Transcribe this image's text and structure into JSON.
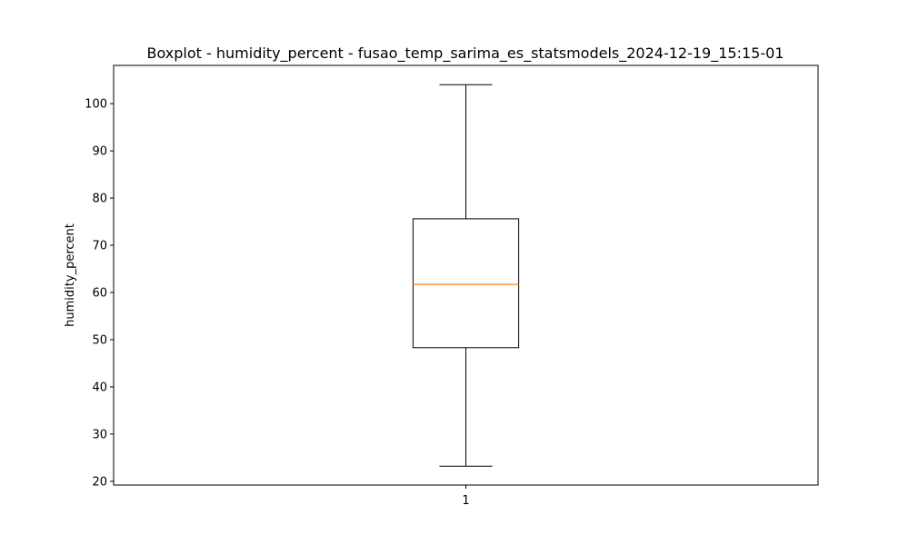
{
  "chart_data": {
    "type": "boxplot",
    "title": "Boxplot - humidity_percent - fusao_temp_sarima_es_statsmodels_2024-12-19_15:15-01",
    "xlabel": "",
    "ylabel": "humidity_percent",
    "categories": [
      "1"
    ],
    "boxes": [
      {
        "category": "1",
        "whisker_low": 23.2,
        "q1": 48.3,
        "median": 61.7,
        "q3": 75.6,
        "whisker_high": 104.0
      }
    ],
    "ylim": [
      19.2,
      108.1
    ],
    "yticks": [
      20,
      30,
      40,
      50,
      60,
      70,
      80,
      90,
      100
    ],
    "grid": false,
    "colors": {
      "box": "#000000",
      "median": "#ff7f0e",
      "whisker": "#000000",
      "axes": "#000000"
    }
  }
}
